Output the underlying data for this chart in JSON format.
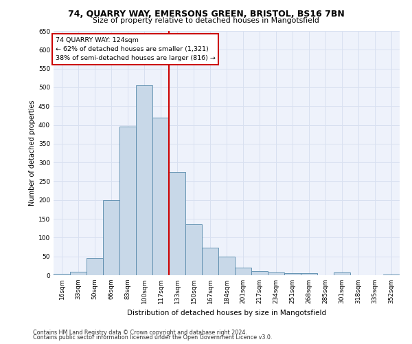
{
  "title1": "74, QUARRY WAY, EMERSONS GREEN, BRISTOL, BS16 7BN",
  "title2": "Size of property relative to detached houses in Mangotsfield",
  "xlabel": "Distribution of detached houses by size in Mangotsfield",
  "ylabel": "Number of detached properties",
  "categories": [
    "16sqm",
    "33sqm",
    "50sqm",
    "66sqm",
    "83sqm",
    "100sqm",
    "117sqm",
    "133sqm",
    "150sqm",
    "167sqm",
    "184sqm",
    "201sqm",
    "217sqm",
    "234sqm",
    "251sqm",
    "268sqm",
    "285sqm",
    "301sqm",
    "318sqm",
    "335sqm",
    "352sqm"
  ],
  "values": [
    3,
    10,
    45,
    200,
    395,
    505,
    420,
    275,
    135,
    73,
    50,
    21,
    11,
    8,
    5,
    5,
    0,
    7,
    0,
    0,
    2
  ],
  "bar_color": "#c8d8e8",
  "bar_edge_color": "#5588aa",
  "vline_x_index": 6,
  "vline_color": "#cc0000",
  "annotation_text": "74 QUARRY WAY: 124sqm\n← 62% of detached houses are smaller (1,321)\n38% of semi-detached houses are larger (816) →",
  "annotation_box_color": "#ffffff",
  "annotation_box_edge": "#cc0000",
  "grid_color": "#d8e0f0",
  "background_color": "#eef2fb",
  "footer1": "Contains HM Land Registry data © Crown copyright and database right 2024.",
  "footer2": "Contains public sector information licensed under the Open Government Licence v3.0.",
  "ylim": [
    0,
    650
  ],
  "yticks": [
    0,
    50,
    100,
    150,
    200,
    250,
    300,
    350,
    400,
    450,
    500,
    550,
    600,
    650
  ]
}
